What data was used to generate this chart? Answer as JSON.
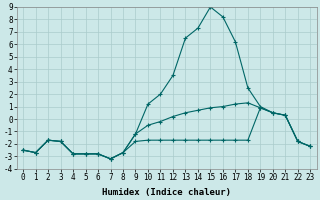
{
  "xlabel": "Humidex (Indice chaleur)",
  "background_color": "#cce8e8",
  "grid_color": "#aacccc",
  "line_color": "#006666",
  "x": [
    0,
    1,
    2,
    3,
    4,
    5,
    6,
    7,
    8,
    9,
    10,
    11,
    12,
    13,
    14,
    15,
    16,
    17,
    18,
    19,
    20,
    21,
    22,
    23
  ],
  "line1": [
    -2.5,
    -2.7,
    -1.7,
    -1.8,
    -2.8,
    -2.8,
    -2.8,
    -3.2,
    -2.7,
    -1.2,
    1.2,
    2.0,
    3.5,
    6.5,
    7.3,
    9.0,
    8.2,
    6.2,
    2.5,
    1.0,
    0.5,
    0.3,
    -1.8,
    -2.2
  ],
  "line2": [
    -2.5,
    -2.7,
    -1.7,
    -1.8,
    -2.8,
    -2.8,
    -2.8,
    -3.2,
    -2.7,
    -1.2,
    -0.5,
    -0.2,
    0.2,
    0.5,
    0.7,
    0.9,
    1.0,
    1.2,
    1.3,
    0.9,
    0.5,
    0.3,
    -1.8,
    -2.2
  ],
  "line3": [
    -2.5,
    -2.7,
    -1.7,
    -1.8,
    -2.8,
    -2.8,
    -2.8,
    -3.2,
    -2.7,
    -1.8,
    -1.7,
    -1.7,
    -1.7,
    -1.7,
    -1.7,
    -1.7,
    -1.7,
    -1.7,
    -1.7,
    0.9,
    0.5,
    0.3,
    -1.8,
    -2.2
  ],
  "xlim_min": -0.5,
  "xlim_max": 23.5,
  "ylim_min": -4,
  "ylim_max": 9,
  "xticks": [
    0,
    1,
    2,
    3,
    4,
    5,
    6,
    7,
    8,
    9,
    10,
    11,
    12,
    13,
    14,
    15,
    16,
    17,
    18,
    19,
    20,
    21,
    22,
    23
  ],
  "yticks": [
    -4,
    -3,
    -2,
    -1,
    0,
    1,
    2,
    3,
    4,
    5,
    6,
    7,
    8,
    9
  ],
  "fontsize_ticks": 5.5,
  "fontsize_xlabel": 6.5
}
